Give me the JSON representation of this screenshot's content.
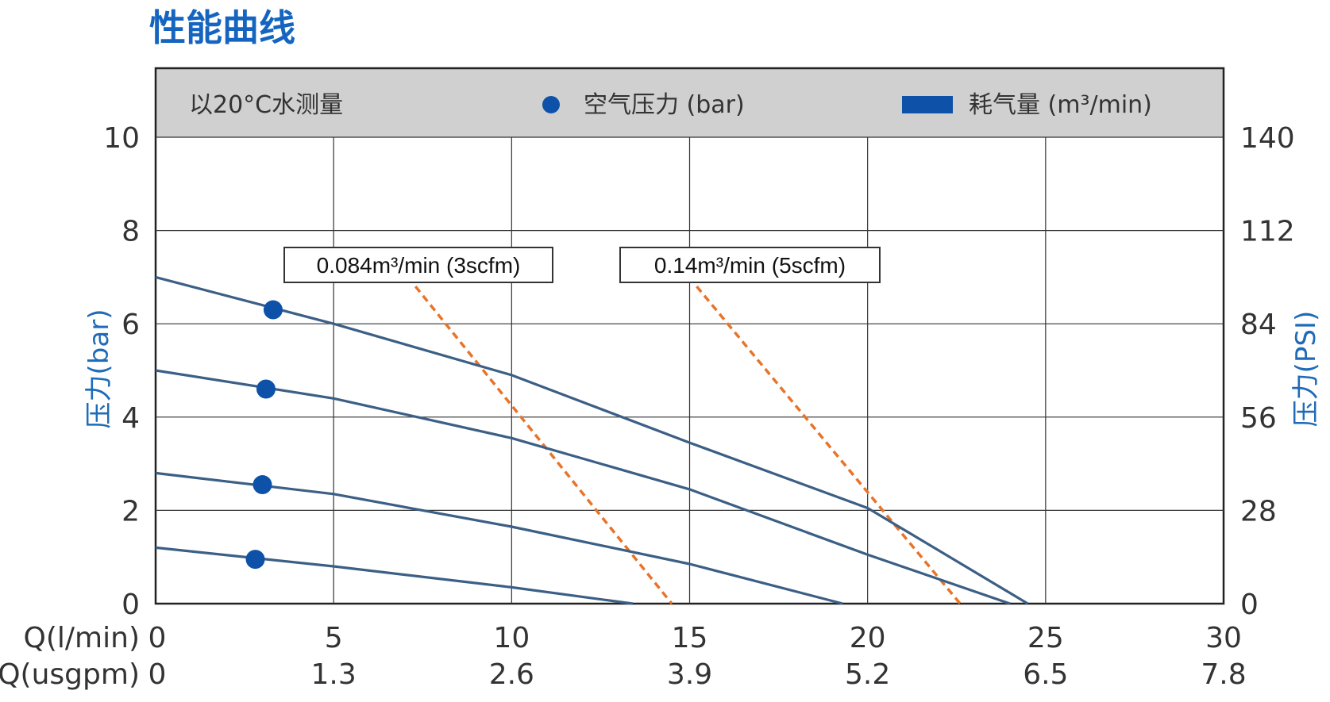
{
  "page_title": "性能曲线",
  "colors": {
    "title": "#1565c0",
    "axis_title": "#1e6bb8",
    "curve": "#3b5f85",
    "marker": "#0d52a8",
    "efficiency": "#e8742a",
    "header_band": "#d0d0d0",
    "grid": "#333333"
  },
  "chart_data": {
    "type": "line",
    "header": {
      "condition": "以20°C水测量",
      "legend": [
        {
          "label": "空气压力 (bar)",
          "symbol": "circle"
        },
        {
          "label": "耗气量 (m³/min)",
          "symbol": "rect"
        }
      ]
    },
    "xlim": [
      0,
      30
    ],
    "ylim": [
      0,
      10
    ],
    "x_ticks": [
      0,
      5,
      10,
      15,
      20,
      25,
      30
    ],
    "x_ticks_usgpm": [
      "0",
      "1.3",
      "2.6",
      "3.9",
      "5.2",
      "6.5",
      "7.8"
    ],
    "x_labels": [
      "Q(l/min)",
      "Q(usgpm)"
    ],
    "y_ticks": [
      0,
      2,
      4,
      6,
      8,
      10
    ],
    "y2_ticks": [
      "0",
      "28",
      "56",
      "84",
      "112",
      "140"
    ],
    "ylabel": "压力(bar)",
    "y2label": "压力(PSI)",
    "grid": true,
    "series": [
      {
        "x": [
          0,
          5,
          10,
          15,
          20,
          24.5
        ],
        "y": [
          7.0,
          6.0,
          4.9,
          3.45,
          2.05,
          0
        ]
      },
      {
        "x": [
          0,
          5,
          10,
          15,
          20,
          24.0
        ],
        "y": [
          5.0,
          4.4,
          3.55,
          2.45,
          1.05,
          0
        ]
      },
      {
        "x": [
          0,
          5,
          10,
          15,
          19.3
        ],
        "y": [
          2.8,
          2.35,
          1.65,
          0.85,
          0
        ]
      },
      {
        "x": [
          0,
          5,
          10,
          13.4
        ],
        "y": [
          1.2,
          0.8,
          0.35,
          0
        ]
      }
    ],
    "markers": [
      {
        "x": 3.3,
        "y": 6.3
      },
      {
        "x": 3.1,
        "y": 4.6
      },
      {
        "x": 3.0,
        "y": 2.55
      },
      {
        "x": 2.8,
        "y": 0.95
      }
    ],
    "air_consumption": [
      {
        "label": "0.084m³/min (3scfm)",
        "x": [
          7.3,
          14.5
        ],
        "y": [
          6.8,
          0
        ]
      },
      {
        "label": "0.14m³/min (5scfm)",
        "x": [
          15.2,
          22.6
        ],
        "y": [
          6.8,
          0
        ]
      }
    ]
  }
}
